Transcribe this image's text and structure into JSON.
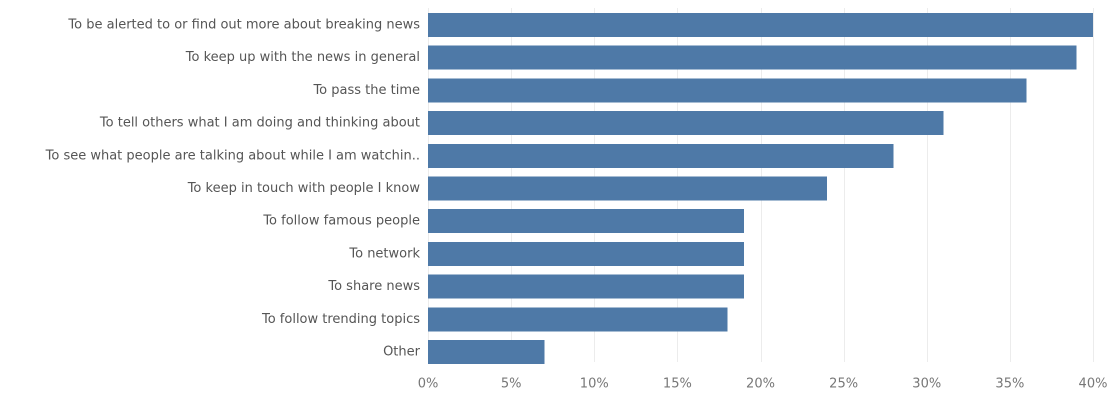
{
  "chart_data": {
    "type": "bar",
    "orientation": "horizontal",
    "title": "",
    "xlabel": "",
    "ylabel": "",
    "categories": [
      "To be alerted to or find out more about breaking news",
      "To keep up with the news in general",
      "To pass the time",
      "To tell others what I am doing and thinking about",
      "To see what people are talking about while I am watchin..",
      "To keep in touch with people I know",
      "To follow famous people",
      "To network",
      "To share news",
      "To follow trending topics",
      "Other"
    ],
    "values": [
      40,
      39,
      36,
      31,
      28,
      24,
      19,
      19,
      19,
      18,
      7
    ],
    "value_unit": "%",
    "xlim": [
      0,
      40
    ],
    "x_ticks": [
      0,
      5,
      10,
      15,
      20,
      25,
      30,
      35,
      40
    ],
    "x_tick_labels": [
      "0%",
      "5%",
      "10%",
      "15%",
      "20%",
      "25%",
      "30%",
      "35%",
      "40%"
    ],
    "grid": true,
    "legend": "none",
    "bar_color": "#4e79a7"
  }
}
